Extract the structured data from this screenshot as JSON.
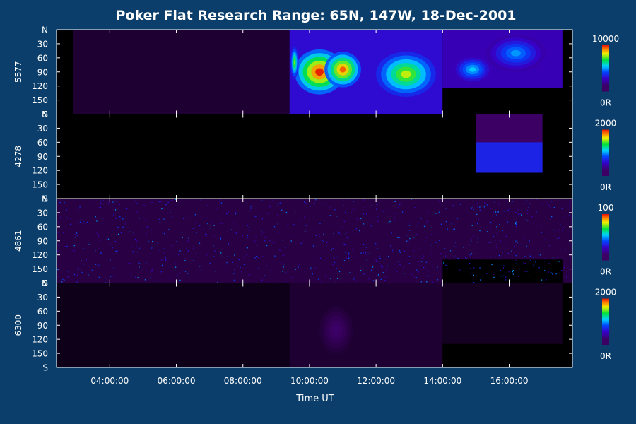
{
  "chart_data": {
    "type": "heatmap",
    "title": "Poker Flat Research Range: 65N, 147W, 18-Dec-2001",
    "xlabel": "Time UT",
    "x_ticks": [
      "04:00:00",
      "06:00:00",
      "08:00:00",
      "10:00:00",
      "12:00:00",
      "14:00:00",
      "16:00:00"
    ],
    "x_tick_hours": [
      4,
      6,
      8,
      10,
      12,
      14,
      16
    ],
    "x_range_hours": [
      2.4,
      17.9
    ],
    "y_ticks": [
      "N",
      "30",
      "60",
      "90",
      "120",
      "150",
      "S"
    ],
    "y_range_deg": [
      0,
      180
    ],
    "panels": [
      {
        "label": "5577",
        "scale_max": "10000",
        "scale_min": "0R",
        "data_range_hours": [
          2.4,
          17.6
        ],
        "blocks": [
          {
            "t0": 2.4,
            "t1": 2.9,
            "y0": 125,
            "y1": 180,
            "intensity": 0.0
          },
          {
            "t0": 2.9,
            "t1": 9.4,
            "y0": 0,
            "y1": 180,
            "intensity": 0.06
          },
          {
            "t0": 9.4,
            "t1": 14.0,
            "y0": 0,
            "y1": 180,
            "intensity": 0.3
          },
          {
            "t0": 14.0,
            "t1": 17.6,
            "y0": 0,
            "y1": 125,
            "intensity": 0.25
          },
          {
            "t0": 14.0,
            "t1": 17.6,
            "y0": 125,
            "y1": 180,
            "intensity": 0.0
          }
        ],
        "features": [
          {
            "t": 10.3,
            "dt": 0.75,
            "y": 90,
            "dy": 48,
            "peak": 1.0
          },
          {
            "t": 11.0,
            "dt": 0.55,
            "y": 85,
            "dy": 38,
            "peak": 0.95
          },
          {
            "t": 12.9,
            "dt": 0.9,
            "y": 95,
            "dy": 48,
            "peak": 0.8
          },
          {
            "t": 9.55,
            "dt": 0.12,
            "y": 70,
            "dy": 35,
            "peak": 0.75
          },
          {
            "t": 14.9,
            "dt": 0.6,
            "y": 85,
            "dy": 30,
            "peak": 0.55
          },
          {
            "t": 16.2,
            "dt": 0.9,
            "y": 50,
            "dy": 40,
            "peak": 0.5
          }
        ]
      },
      {
        "label": "4278",
        "scale_max": "2000",
        "scale_min": "0R",
        "data_range_hours": [
          2.4,
          17.6
        ],
        "blocks": [
          {
            "t0": 15.0,
            "t1": 17.0,
            "y0": 0,
            "y1": 125,
            "intensity": 0.12
          },
          {
            "t0": 15.0,
            "t1": 17.0,
            "y0": 60,
            "y1": 125,
            "intensity": 0.35
          }
        ],
        "features": []
      },
      {
        "label": "4861",
        "scale_max": "100",
        "scale_min": "0R",
        "data_range_hours": [
          2.4,
          17.9
        ],
        "blocks": [
          {
            "t0": 2.4,
            "t1": 17.9,
            "y0": 0,
            "y1": 180,
            "intensity": 0.08
          },
          {
            "t0": 14.0,
            "t1": 17.6,
            "y0": 130,
            "y1": 180,
            "intensity": 0.0
          }
        ],
        "features": []
      },
      {
        "label": "6300",
        "scale_max": "2000",
        "scale_min": "0R",
        "data_range_hours": [
          2.4,
          17.6
        ],
        "blocks": [
          {
            "t0": 2.4,
            "t1": 9.4,
            "y0": 0,
            "y1": 180,
            "intensity": 0.03
          },
          {
            "t0": 9.4,
            "t1": 14.0,
            "y0": 0,
            "y1": 180,
            "intensity": 0.06
          },
          {
            "t0": 14.0,
            "t1": 17.6,
            "y0": 0,
            "y1": 130,
            "intensity": 0.04
          },
          {
            "t0": 14.0,
            "t1": 17.6,
            "y0": 130,
            "y1": 180,
            "intensity": 0.0
          }
        ],
        "features": [
          {
            "t": 10.8,
            "dt": 0.6,
            "y": 100,
            "dy": 60,
            "peak": 0.13
          }
        ]
      }
    ],
    "colors": {
      "background": "#0b3e6a",
      "plot_fill": "#000000",
      "axis": "#ffffff"
    }
  }
}
